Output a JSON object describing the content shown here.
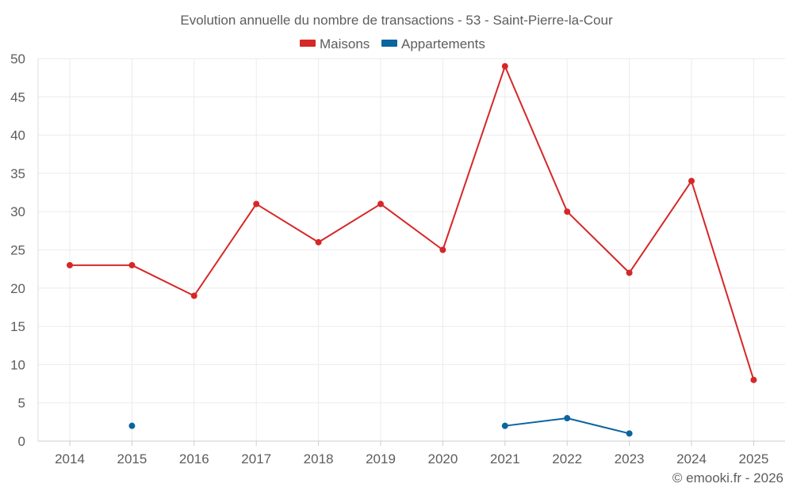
{
  "chart_data": {
    "type": "line",
    "title": "Evolution annuelle du nombre de transactions - 53 - Saint-Pierre-la-Cour",
    "categories": [
      "2014",
      "2015",
      "2016",
      "2017",
      "2018",
      "2019",
      "2020",
      "2021",
      "2022",
      "2023",
      "2024",
      "2025"
    ],
    "series": [
      {
        "name": "Maisons",
        "color": "#d62728",
        "values": [
          23,
          23,
          19,
          31,
          26,
          31,
          25,
          49,
          30,
          22,
          34,
          8
        ]
      },
      {
        "name": "Appartements",
        "color": "#0b64a0",
        "values": [
          null,
          2,
          null,
          null,
          null,
          null,
          null,
          2,
          3,
          1,
          null,
          null
        ]
      }
    ],
    "ylim": [
      0,
      50
    ],
    "yticks": [
      0,
      5,
      10,
      15,
      20,
      25,
      30,
      35,
      40,
      45,
      50
    ],
    "xlabel": "",
    "ylabel": "",
    "grid": true,
    "legend_position": "top-center",
    "footer": "© emooki.fr - 2026"
  }
}
